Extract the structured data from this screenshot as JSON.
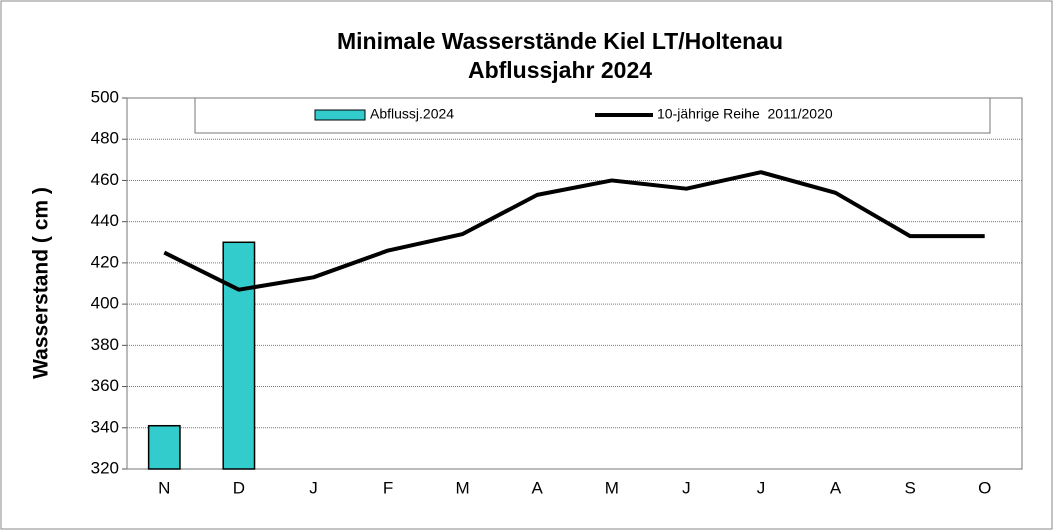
{
  "chart_data": {
    "type": "bar",
    "title": "Minimale Wasserstände Kiel LT/Holtenau",
    "subtitle": "Abflussjahr 2024",
    "y_label": "Wasserstand ( cm )",
    "categories": [
      "N",
      "D",
      "J",
      "F",
      "M",
      "A",
      "M",
      "J",
      "J",
      "A",
      "S",
      "O"
    ],
    "series": [
      {
        "name": "Abflussj.2024",
        "type": "bar",
        "color": "#33cccc",
        "values": [
          341,
          430,
          null,
          null,
          null,
          null,
          null,
          null,
          null,
          null,
          null,
          null
        ]
      },
      {
        "name": "10-jährige Reihe  2011/2020",
        "type": "line",
        "color": "#000000",
        "values": [
          425,
          407,
          413,
          426,
          434,
          453,
          460,
          456,
          464,
          454,
          433,
          433
        ]
      }
    ],
    "ylim": [
      320,
      500
    ],
    "yticks": [
      320,
      340,
      360,
      380,
      400,
      420,
      440,
      460,
      480,
      500
    ],
    "grid": true,
    "legend": "top"
  }
}
